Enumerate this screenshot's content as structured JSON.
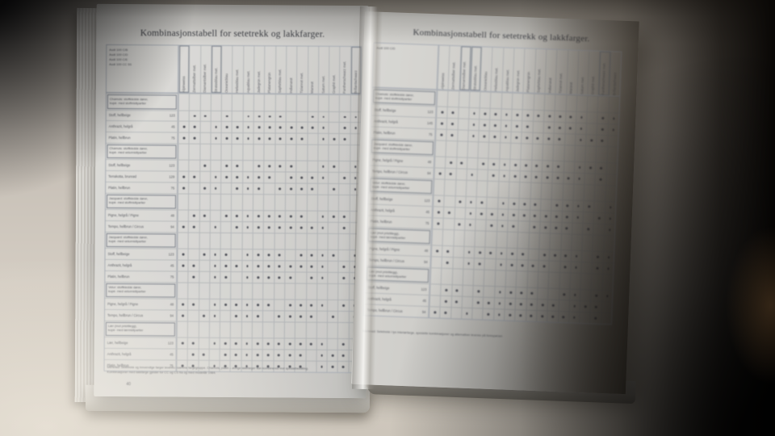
{
  "scene": {
    "colors": {
      "desk": "#bfb8af",
      "desk_bright": "#efe8da",
      "shadow": "#0c0a07",
      "page": "#d8d7d3",
      "ink": "#3e4046",
      "ink-soft": "#595b60",
      "grid": "#a8adb5",
      "dot": "#4e5058",
      "box": "#7e848d"
    }
  },
  "left_page": {
    "title": "Kombinasjonstabell for setetrekk og lakkfarger.",
    "models": [
      "Audi 100 C/B",
      "Audi 100 C/D",
      "Audi 100 C/E",
      "Audi 100 CC 5S"
    ],
    "columns": [
      {
        "label": "Alpinweiss",
        "boxed": true
      },
      {
        "label": "Zermattsilber met.",
        "boxed": false
      },
      {
        "label": "Diamantsilber met.",
        "boxed": false
      },
      {
        "label": "Stratosblau met.",
        "boxed": true
      },
      {
        "label": "Oceanicblau",
        "boxed": false
      },
      {
        "label": "Heliosblau met.",
        "boxed": false
      },
      {
        "label": "Aquablau met.",
        "boxed": false
      },
      {
        "label": "Jadegrün met.",
        "boxed": false
      },
      {
        "label": "Platanengrün",
        "boxed": false
      },
      {
        "label": "Saphirblau met.",
        "boxed": false
      },
      {
        "label": "Indianarot",
        "boxed": false
      },
      {
        "label": "Tizianrot met.",
        "boxed": false
      },
      {
        "label": "Marsrot",
        "boxed": false
      },
      {
        "label": "Saturn met.",
        "boxed": false
      },
      {
        "label": "Graphit met.",
        "boxed": false
      },
      {
        "label": "Pantherschwarz met.",
        "boxed": false
      },
      {
        "label": "Brillantschwarz",
        "boxed": true
      }
    ],
    "rows": [
      {
        "type": "group",
        "lines": [
          "Chamois: stoffkledde dører,",
          "kupé- med stoffmidtpartier"
        ]
      },
      {
        "type": "item",
        "label": "Stoff, hellbeige",
        "code": "123",
        "dots": "01101011110011011"
      },
      {
        "type": "item",
        "label": "Anthrazit, helgrå",
        "code": "45",
        "dots": "11011111111111011"
      },
      {
        "type": "item",
        "label": "Platin, hellbrun",
        "code": "75",
        "dots": "11011111111101110"
      },
      {
        "type": "group",
        "lines": [
          "Chamois: stoffkledde dører,",
          "kupé- med velurmidtpartier"
        ]
      },
      {
        "type": "item",
        "label": "Stoff, hellbeige",
        "code": "123",
        "dots": "00101101111001101"
      },
      {
        "type": "item",
        "label": "Terrakotta, brunrød",
        "code": "129",
        "dots": "11011111101111011"
      },
      {
        "type": "item",
        "label": "Platin, hellbrun",
        "code": "75",
        "dots": "10110111011110101"
      },
      {
        "type": "group",
        "lines": [
          "Jacquard: stoffkledde dører,",
          "kupé- med stoffmidtpartier"
        ]
      },
      {
        "type": "item",
        "label": "Pigne, helgrå / Pigne",
        "code": "48",
        "dots": "01101111111101110"
      },
      {
        "type": "item",
        "label": "Tempo, hellbrun / Circus",
        "code": "94",
        "dots": "11010111111111010"
      },
      {
        "type": "group",
        "lines": [
          "Jacquard: stoffkledde dører,",
          "kupé- med velurmidtpartier"
        ]
      },
      {
        "type": "item",
        "label": "Stoff, hellbeige",
        "code": "123",
        "dots": "10111011110111101"
      },
      {
        "type": "item",
        "label": "Anthrazit, helgrå",
        "code": "45",
        "dots": "11011111111111011"
      },
      {
        "type": "item",
        "label": "Platin, hellbrun",
        "code": "75",
        "dots": "01011011111011011"
      },
      {
        "type": "group",
        "lines": [
          "Velur: stoffkledde dører,",
          "kupé- med velurmidtpartier"
        ]
      },
      {
        "type": "item",
        "label": "Pigne, helgrå / Pigne",
        "code": "48",
        "dots": "11011111101111011"
      },
      {
        "type": "item",
        "label": "Tempo, hellbrun / Circus",
        "code": "94",
        "dots": "10110111011110101"
      },
      {
        "type": "group",
        "lines": [
          "Lær (mot pristillegg),",
          "kupé- med lærmidtpartier"
        ]
      },
      {
        "type": "item",
        "label": "Lær, hellbeige",
        "code": "123",
        "dots": "11011111111111011"
      },
      {
        "type": "item",
        "label": "Anthrazit, helgrå",
        "code": "45",
        "dots": "01101111111101110"
      },
      {
        "type": "item",
        "label": "Platin, hellbrun",
        "code": "75",
        "dots": "11011111111101110"
      }
    ],
    "footnotes": [
      "Merknad: Setetrekk og innvendige farger leveres i samme fargegruppe. Chamois, platin – øvrige lakkfarger kan kombineres mot spesialbestilling.",
      "Kombinasjoner med lakkfarge gjelder for CC og CS fra og med modellår 1984."
    ],
    "page_number": "40"
  },
  "right_page": {
    "title": "Kombinasjonstabell for setetrekk og lakkfarger.",
    "model": "Audi 100 C/D",
    "columns": [
      {
        "label": "Alpinweiss",
        "boxed": false
      },
      {
        "label": "Zermattsilber met.",
        "boxed": false
      },
      {
        "label": "Diamantsilber met.",
        "boxed": true
      },
      {
        "label": "Stratosblau met.",
        "boxed": true
      },
      {
        "label": "Oceanicblau",
        "boxed": false
      },
      {
        "label": "Heliosblau met.",
        "boxed": false
      },
      {
        "label": "Aquablau met.",
        "boxed": false
      },
      {
        "label": "Jadegrün met.",
        "boxed": false
      },
      {
        "label": "Platanengrün",
        "boxed": false
      },
      {
        "label": "Saphirblau met.",
        "boxed": false
      },
      {
        "label": "Indianarot",
        "boxed": false
      },
      {
        "label": "Tizianrot met.",
        "boxed": false
      },
      {
        "label": "Marsrot",
        "boxed": false
      },
      {
        "label": "Saturn met.",
        "boxed": false
      },
      {
        "label": "Graphit met.",
        "boxed": false
      },
      {
        "label": "Pantherschwarz met.",
        "boxed": true
      },
      {
        "label": "Brillantschwarz",
        "boxed": false
      }
    ],
    "rows": [
      {
        "type": "group",
        "lines": [
          "Chamois: stoffkledde dører,",
          "kupé- med stoffmidtpartier"
        ]
      },
      {
        "type": "item",
        "label": "Stoff, hellbeige",
        "code": "123",
        "dots": "11011111111111011"
      },
      {
        "type": "item",
        "label": "Anthrazit, helgrå",
        "code": "145",
        "dots": "11011111101111011"
      },
      {
        "type": "item",
        "label": "Platin, hellbrun",
        "code": "75",
        "dots": "11011111111101110"
      },
      {
        "type": "group",
        "lines": [
          "Jacquard: stoffkledde dører,",
          "kupé- med stoffmidtpartier"
        ]
      },
      {
        "type": "item",
        "label": "Pigne, helgrå / Pigne",
        "code": "48",
        "dots": "01101111111101110"
      },
      {
        "type": "item",
        "label": "Tempo, hellbrun / Circus",
        "code": "94",
        "dots": "11010111111111010"
      },
      {
        "type": "group",
        "lines": [
          "Velur: stoffkledde dører,",
          "kupé- med velurmidtpartier"
        ]
      },
      {
        "type": "item",
        "label": "Stoff, hellbeige",
        "code": "123",
        "dots": "10111011110111101"
      },
      {
        "type": "item",
        "label": "Anthrazit, helgrå",
        "code": "45",
        "dots": "11011111111111011"
      },
      {
        "type": "item",
        "label": "Platin, hellbrun",
        "code": "75",
        "dots": "10110111011110101"
      },
      {
        "type": "group",
        "lines": [
          "Lær (mot pristillegg),",
          "kupé- med lærmidtpartier"
        ]
      },
      {
        "type": "item",
        "label": "Pigne, helgrå / Pigne",
        "code": "48",
        "dots": "11011111101111011"
      },
      {
        "type": "item",
        "label": "Tempo, hellbrun / Circus",
        "code": "94",
        "dots": "01011011111011011"
      },
      {
        "type": "group",
        "lines": [
          "Lær (mot pristillegg),",
          "kupé- med velurmidtpartier"
        ]
      },
      {
        "type": "item",
        "label": "Stoff, hellbeige",
        "code": "123",
        "dots": "01101011110011011"
      },
      {
        "type": "item",
        "label": "Anthrazit, helgrå",
        "code": "45",
        "dots": "01101111111101110"
      },
      {
        "type": "item",
        "label": "Tempo, hellbrun / Circus",
        "code": "94",
        "dots": "11010111111111010"
      }
    ],
    "footnotes": [
      "Merknad: Setetrekk i lys interiørfarge, spesielle kombinasjoner og alternativer leveres på forespørsel."
    ]
  }
}
